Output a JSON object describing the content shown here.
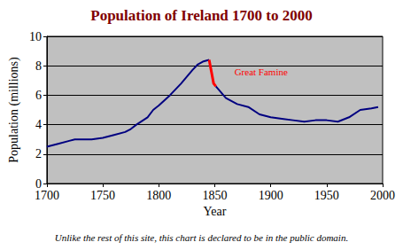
{
  "chart_data": {
    "type": "line",
    "title": "Population of Ireland 1700 to 2000",
    "x_label": "Year",
    "y_label": "Population (millions)",
    "caption": "Unlike the rest of this site, this chart is declared to be in the public domain.",
    "x": [
      1700,
      1710,
      1720,
      1725,
      1730,
      1740,
      1750,
      1760,
      1770,
      1775,
      1780,
      1790,
      1795,
      1800,
      1810,
      1820,
      1830,
      1835,
      1840,
      1845,
      1847,
      1849,
      1851,
      1860,
      1870,
      1880,
      1890,
      1900,
      1910,
      1920,
      1930,
      1940,
      1950,
      1960,
      1970,
      1980,
      1990,
      1996
    ],
    "series": [
      {
        "color": "#000080",
        "values": [
          2.5,
          2.7,
          2.9,
          3.0,
          3.0,
          3.0,
          3.1,
          3.3,
          3.5,
          3.7,
          4.0,
          4.5,
          5.0,
          5.3,
          6.0,
          6.8,
          7.7,
          8.1,
          8.3,
          8.4,
          null,
          null,
          6.6,
          5.8,
          5.4,
          5.2,
          4.7,
          4.5,
          4.4,
          4.3,
          4.2,
          4.3,
          4.3,
          4.2,
          4.5,
          5.0,
          5.1,
          5.2
        ]
      },
      {
        "name": "Great Famine",
        "color": "#ff0000",
        "values": [
          null,
          null,
          null,
          null,
          null,
          null,
          null,
          null,
          null,
          null,
          null,
          null,
          null,
          null,
          null,
          null,
          null,
          null,
          null,
          8.4,
          7.6,
          6.8,
          6.6,
          null,
          null,
          null,
          null,
          null,
          null,
          null,
          null,
          null,
          null,
          null,
          null,
          null,
          null,
          null
        ]
      }
    ],
    "xlim": [
      1700,
      2000
    ],
    "xticks": [
      1700,
      1750,
      1800,
      1850,
      1900,
      1950,
      2000
    ],
    "ylim": [
      0,
      10
    ],
    "yticks": [
      0,
      2,
      4,
      6,
      8,
      10
    ],
    "grid": true
  }
}
